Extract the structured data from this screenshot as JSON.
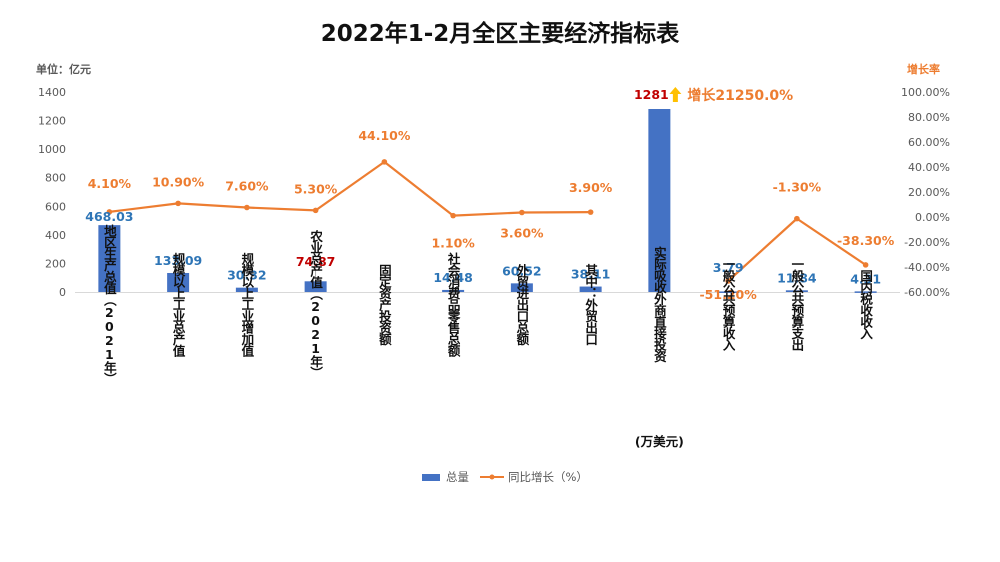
{
  "chart_data": {
    "type": "bar",
    "title": "2022年1-2月全区主要经济指标表",
    "left_axis": {
      "unit_label": "单位：亿元",
      "ylim": [
        0,
        1400
      ],
      "ticks": [
        "0",
        "200",
        "400",
        "600",
        "800",
        "1000",
        "1200",
        "1400"
      ]
    },
    "right_axis": {
      "unit_label": "增长率",
      "ylim": [
        -60,
        100
      ],
      "ticks": [
        "-60.00%",
        "-40.00%",
        "-20.00%",
        "0.00%",
        "20.00%",
        "40.00%",
        "60.00%",
        "80.00%",
        "100.00%"
      ]
    },
    "categories": [
      "地区生产总值（2021年）",
      "规模以上工业总产值",
      "规模以上工业增加值",
      "农业总产值（2021年）",
      "固定资产投资额",
      "社会消费品零售总额",
      "外贸进出口总额",
      "其中：外贸出口",
      "实际吸收外商直接投资",
      "一般公共预算收入",
      "一般公共预算支出",
      "国内税收收入"
    ],
    "category_notes": {
      "8": "(万美元)"
    },
    "series": [
      {
        "name": "总量",
        "type": "bar",
        "color": "#4472C4",
        "values": [
          468.03,
          133.09,
          30.32,
          74.87,
          null,
          14.48,
          60.52,
          38.11,
          1281,
          3.79,
          11.84,
          4.31
        ],
        "labels": [
          "468.03",
          "133.09",
          "30.32",
          "74.87",
          "",
          "14.48",
          "60.52",
          "38.11",
          "1281",
          "3.79",
          "11.84",
          "4.31"
        ]
      },
      {
        "name": "同比增长（%）",
        "type": "line",
        "color": "#ED7D31",
        "values": [
          4.1,
          10.9,
          7.6,
          5.3,
          44.1,
          1.1,
          3.6,
          3.9,
          null,
          -51.2,
          -1.3,
          -38.3
        ],
        "labels": [
          "4.10%",
          "10.90%",
          "7.60%",
          "5.30%",
          "44.10%",
          "1.10%",
          "3.60%",
          "3.90%",
          "",
          "-51.20%",
          "-1.30%",
          "-38.30%"
        ]
      }
    ],
    "special_annotation": {
      "category_index": 8,
      "arrow_icon": "up-arrow-icon",
      "text": "增长21250.0%",
      "arrow_color": "#FFC000",
      "text_color": "#ED7D31"
    },
    "highlight_value_color": "#C00000",
    "value_label_color": "#2E75B6",
    "legend": {
      "position": "bottom",
      "items": [
        "总量",
        "同比增长（%）"
      ]
    }
  }
}
